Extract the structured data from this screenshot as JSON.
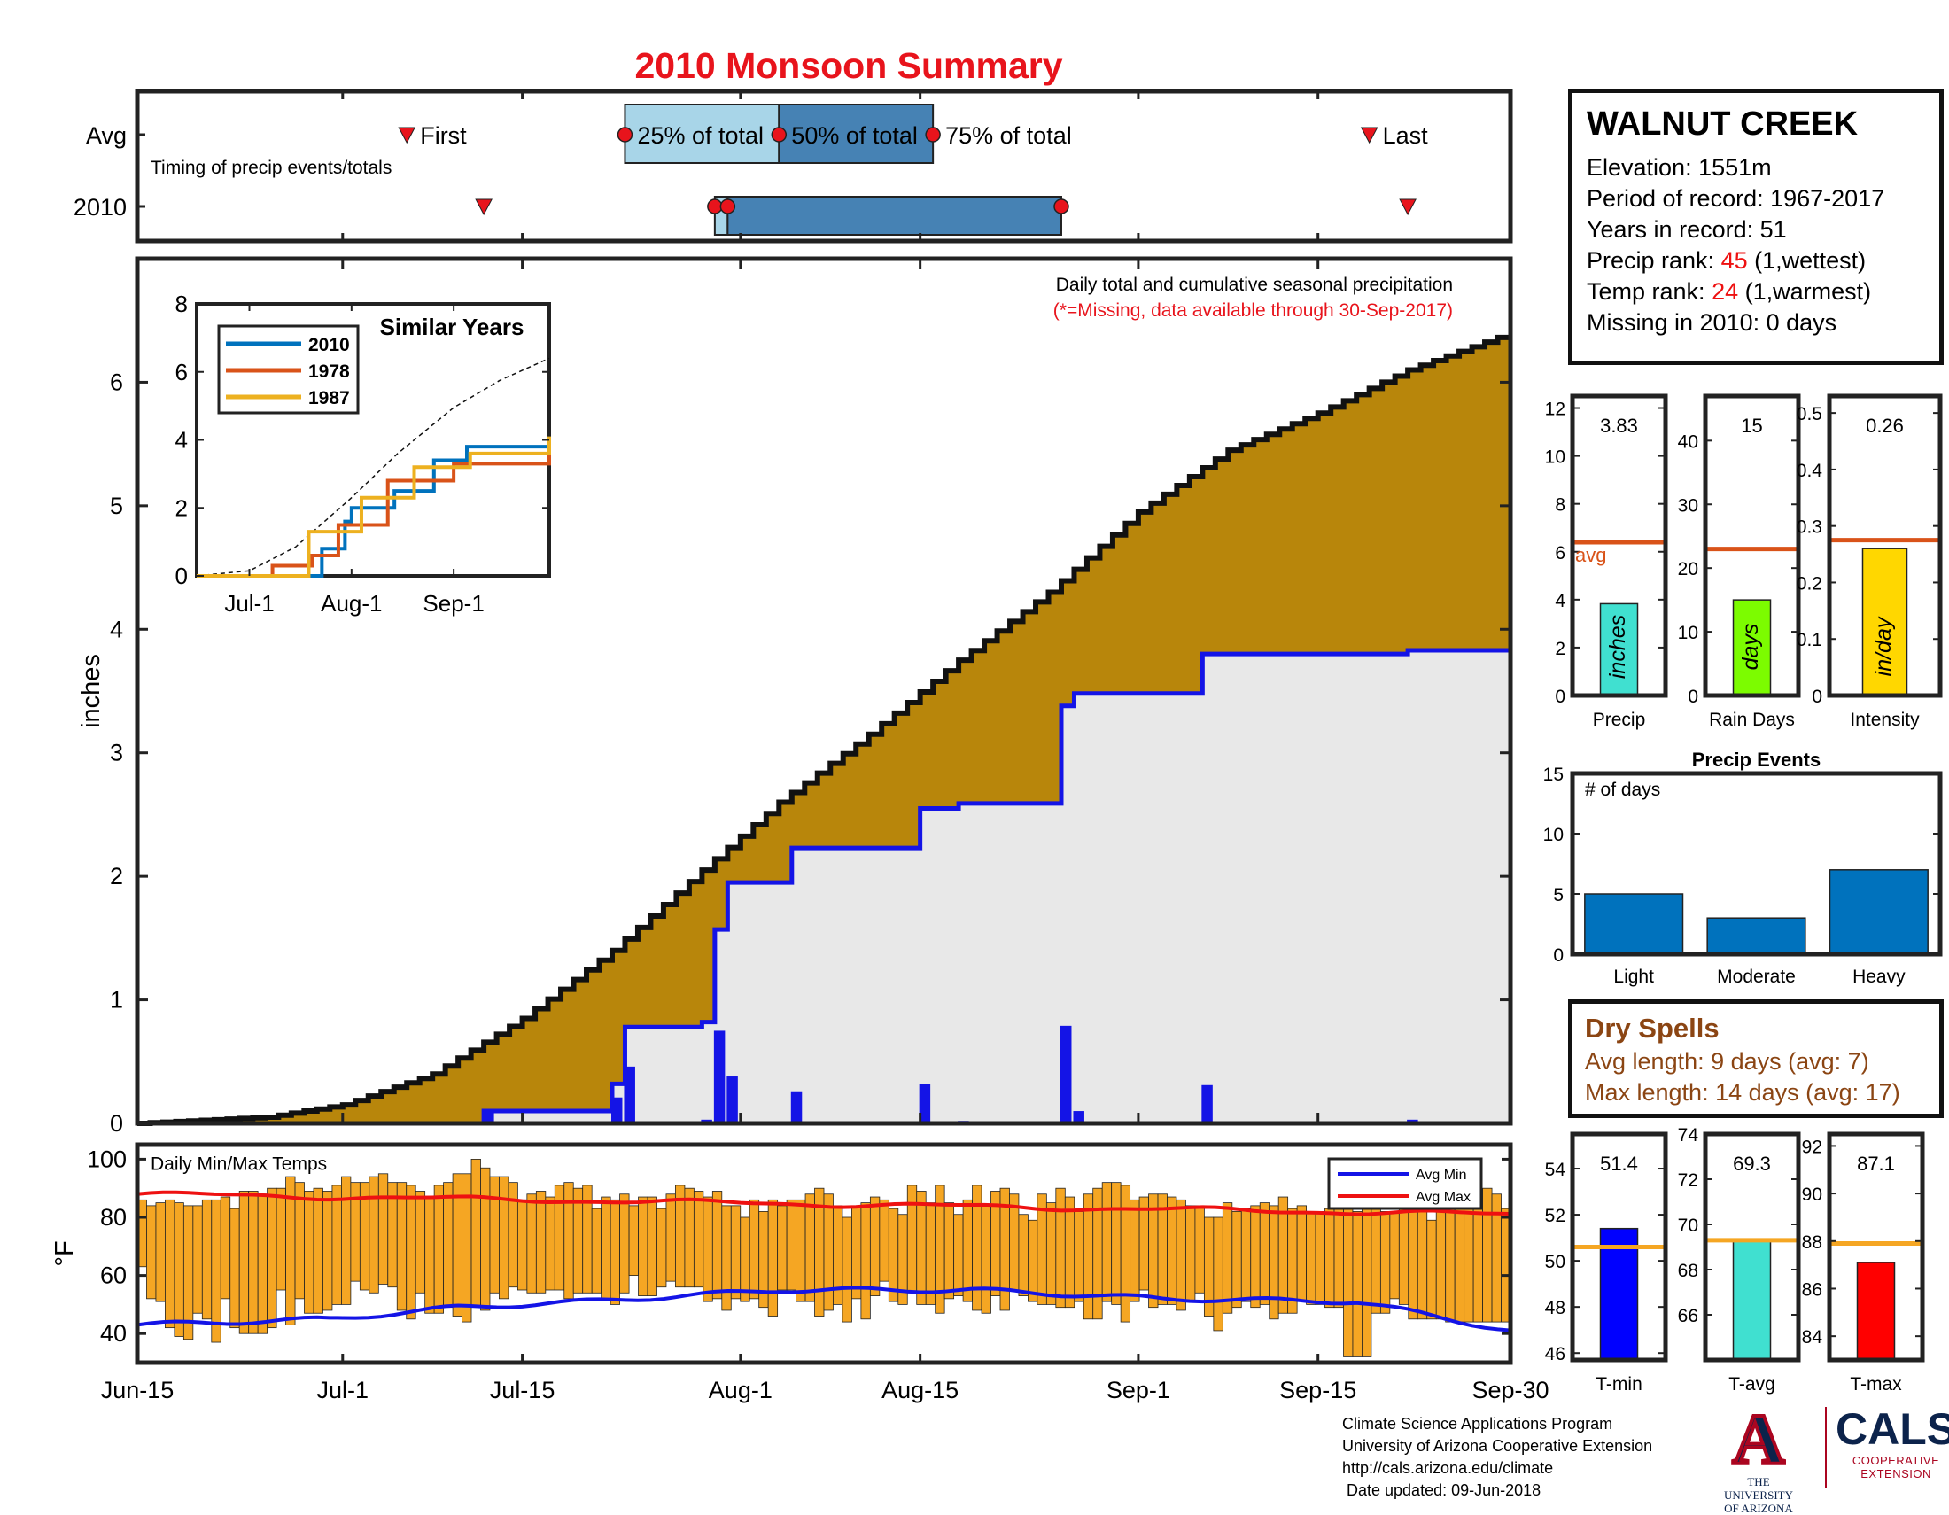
{
  "title": "2010 Monsoon Summary",
  "station": {
    "name": "WALNUT CREEK",
    "elevation_label": "Elevation: 1551m",
    "period_label": "Period of record: 1967-2017",
    "years_label": "Years in record: 51",
    "precip_rank_prefix": "Precip rank: ",
    "precip_rank_value": "45",
    "precip_rank_suffix": " (1,wettest)",
    "temp_rank_prefix": "Temp rank: ",
    "temp_rank_value": "24",
    "temp_rank_suffix": " (1,warmest)",
    "missing_label": "Missing in 2010: 0 days"
  },
  "dry_spells": {
    "title": "Dry Spells",
    "avg_label": "Avg length: 9 days (avg: 7)",
    "max_label": "Max length: 14 days (avg: 17)"
  },
  "footer": {
    "line1": "Climate Science Applications Program",
    "line2": "University of Arizona Cooperative Extension",
    "line3": "http://cals.arizona.edu/climate",
    "line4": " Date updated: 09-Jun-2018"
  },
  "logos": {
    "ua_letter": "A",
    "ua_text_1": "THE UNIVERSITY",
    "ua_text_2": "OF ARIZONA",
    "cals_word": "CALS",
    "cals_sub_1": "COOPERATIVE",
    "cals_sub_2": "EXTENSION"
  },
  "colors": {
    "title": "#e8141c",
    "avg_area": "#b8860b",
    "year_area": "#e8e8e8",
    "year_line": "#1414e6",
    "daily_bar": "#1414e6",
    "temp_bar": "#f5a623",
    "avg_max": "#ee1111",
    "avg_min": "#1414e6",
    "timing_light": "#a8d5e8",
    "timing_dark": "#4682b4",
    "series_2010": "#0072bd",
    "series_1978": "#d95319",
    "series_1987": "#edb120",
    "avg_line": "#d95319",
    "temp_avg_line": "#f5a623",
    "precip_bar": "#40e0d0",
    "raindays_bar": "#7cfc00",
    "intensity_bar": "#ffd700",
    "events_bar": "#0072bd",
    "tmin_bar": "#0000ff",
    "tavg_bar": "#40e0d0",
    "tmax_bar": "#ff0000"
  },
  "chart_data": [
    {
      "id": "timing",
      "type": "timeline",
      "title": "Timing of precip events/totals",
      "rows": [
        "Avg",
        "2010"
      ],
      "avg": {
        "first": "Jul-6",
        "q25": "Jul-23",
        "q50": "Aug-4",
        "q75": "Aug-16",
        "last": "Sep-19"
      },
      "y2010": {
        "first": "Jul-12",
        "q25": "Jul-30",
        "q50": "Jul-31",
        "q75": "Aug-26",
        "last": "Sep-22"
      },
      "labels": {
        "first": "First",
        "q25": "25% of total",
        "q50": "50% of total",
        "q75": "75% of total",
        "last": "Last"
      }
    },
    {
      "id": "cumulative",
      "type": "area",
      "title": "Daily total and cumulative seasonal precipitation",
      "subtitle": "(*=Missing, data available through 30-Sep-2017)",
      "ylabel": "inches",
      "ylim": [
        0,
        7
      ],
      "yticks": [
        0,
        1,
        2,
        3,
        4,
        5,
        6
      ],
      "xticks": [
        "Jun-15",
        "Jul-1",
        "Jul-15",
        "Aug-1",
        "Aug-15",
        "Sep-1",
        "Sep-15",
        "Sep-30"
      ],
      "avg_cumulative_points": [
        [
          "Jun-15",
          0.0
        ],
        [
          "Jun-25",
          0.05
        ],
        [
          "Jul-1",
          0.15
        ],
        [
          "Jul-8",
          0.4
        ],
        [
          "Jul-15",
          0.85
        ],
        [
          "Jul-22",
          1.4
        ],
        [
          "Jul-29",
          2.05
        ],
        [
          "Aug-4",
          2.6
        ],
        [
          "Aug-11",
          3.15
        ],
        [
          "Aug-18",
          3.75
        ],
        [
          "Aug-25",
          4.3
        ],
        [
          "Sep-1",
          4.95
        ],
        [
          "Sep-8",
          5.45
        ],
        [
          "Sep-15",
          5.75
        ],
        [
          "Sep-22",
          6.1
        ],
        [
          "Sep-30",
          6.4
        ]
      ],
      "year_cumulative_steps": [
        [
          "Jun-15",
          0.0
        ],
        [
          "Jul-12",
          0.1
        ],
        [
          "Jul-22",
          0.32
        ],
        [
          "Jul-23",
          0.78
        ],
        [
          "Jul-29",
          0.82
        ],
        [
          "Jul-30",
          1.57
        ],
        [
          "Jul-31",
          1.95
        ],
        [
          "Aug-5",
          2.23
        ],
        [
          "Aug-15",
          2.55
        ],
        [
          "Aug-18",
          2.59
        ],
        [
          "Aug-26",
          3.38
        ],
        [
          "Aug-27",
          3.48
        ],
        [
          "Sep-6",
          3.8
        ],
        [
          "Sep-22",
          3.83
        ],
        [
          "Sep-30",
          3.83
        ]
      ],
      "daily_totals": [
        [
          "Jul-12",
          0.1
        ],
        [
          "Jul-22",
          0.21
        ],
        [
          "Jul-23",
          0.46
        ],
        [
          "Jul-29",
          0.03
        ],
        [
          "Jul-30",
          0.75
        ],
        [
          "Jul-31",
          0.38
        ],
        [
          "Aug-5",
          0.26
        ],
        [
          "Aug-15",
          0.32
        ],
        [
          "Aug-18",
          0.02
        ],
        [
          "Aug-26",
          0.79
        ],
        [
          "Aug-27",
          0.1
        ],
        [
          "Sep-6",
          0.31
        ],
        [
          "Sep-22",
          0.03
        ]
      ]
    },
    {
      "id": "similar_years",
      "type": "line",
      "title": "Similar Years",
      "ylim": [
        0,
        8
      ],
      "yticks": [
        0,
        2,
        4,
        6,
        8
      ],
      "xticks": [
        "Jul-1",
        "Aug-1",
        "Sep-1"
      ],
      "series": [
        {
          "name": "2010",
          "points": [
            [
              "Jun-15",
              0
            ],
            [
              "Jul-22",
              0
            ],
            [
              "Jul-23",
              0.8
            ],
            [
              "Jul-30",
              1.6
            ],
            [
              "Aug-1",
              2.0
            ],
            [
              "Aug-14",
              2.5
            ],
            [
              "Aug-26",
              3.4
            ],
            [
              "Sep-5",
              3.8
            ],
            [
              "Sep-30",
              3.83
            ]
          ]
        },
        {
          "name": "1978",
          "points": [
            [
              "Jun-15",
              0
            ],
            [
              "Jul-7",
              0
            ],
            [
              "Jul-8",
              0.3
            ],
            [
              "Jul-20",
              0.6
            ],
            [
              "Jul-28",
              1.5
            ],
            [
              "Aug-12",
              2.8
            ],
            [
              "Sep-1",
              3.3
            ],
            [
              "Sep-30",
              3.8
            ]
          ]
        },
        {
          "name": "1987",
          "points": [
            [
              "Jun-15",
              0
            ],
            [
              "Jul-18",
              0
            ],
            [
              "Jul-19",
              1.3
            ],
            [
              "Aug-4",
              2.3
            ],
            [
              "Aug-20",
              3.2
            ],
            [
              "Sep-6",
              3.6
            ],
            [
              "Sep-30",
              4.1
            ]
          ]
        }
      ],
      "avg_points": [
        [
          "Jun-15",
          0
        ],
        [
          "Jul-1",
          0.15
        ],
        [
          "Jul-15",
          0.85
        ],
        [
          "Aug-1",
          2.3
        ],
        [
          "Aug-15",
          3.6
        ],
        [
          "Sep-1",
          4.95
        ],
        [
          "Sep-15",
          5.75
        ],
        [
          "Sep-30",
          6.4
        ]
      ]
    },
    {
      "id": "precip",
      "type": "bar",
      "xlabel": "Precip",
      "value": 3.83,
      "value_label": "3.83",
      "avg": 6.4,
      "avg_label": "avg",
      "bar_label": "inches",
      "ylim": [
        0,
        12.5
      ],
      "yticks": [
        0,
        2,
        4,
        6,
        8,
        10,
        12
      ]
    },
    {
      "id": "rain_days",
      "type": "bar",
      "xlabel": "Rain Days",
      "value": 15,
      "value_label": "15",
      "avg": 23,
      "bar_label": "days",
      "ylim": [
        0,
        47
      ],
      "yticks": [
        0,
        10,
        20,
        30,
        40
      ]
    },
    {
      "id": "intensity",
      "type": "bar",
      "xlabel": "Intensity",
      "value": 0.26,
      "value_label": "0.26",
      "avg": 0.275,
      "bar_label": "in/day",
      "ylim": [
        0,
        0.53
      ],
      "yticks": [
        0,
        0.1,
        0.2,
        0.3,
        0.4,
        0.5
      ]
    },
    {
      "id": "precip_events",
      "type": "bar",
      "title": "Precip Events",
      "annotation": "# of days",
      "categories": [
        "Light",
        "Moderate",
        "Heavy"
      ],
      "values": [
        5,
        3,
        7
      ],
      "ylim": [
        0,
        15
      ],
      "yticks": [
        0,
        5,
        10,
        15
      ]
    },
    {
      "id": "daily_temps",
      "type": "bar",
      "title": "Daily Min/Max Temps",
      "ylabel": "°F",
      "ylim": [
        30,
        105
      ],
      "yticks": [
        40,
        60,
        80,
        100
      ],
      "legend": [
        "Avg Min",
        "Avg Max"
      ],
      "daily_min": [
        63,
        52,
        51,
        42,
        39,
        38,
        47,
        45,
        37,
        52,
        42,
        40,
        40,
        40,
        42,
        55,
        43,
        52,
        47,
        47,
        48,
        50,
        50,
        58,
        55,
        54,
        57,
        56,
        48,
        45,
        54,
        47,
        47,
        49,
        46,
        44,
        49,
        48,
        54,
        52,
        56,
        55,
        54,
        54,
        55,
        55,
        52,
        54,
        54,
        54,
        52,
        50,
        54,
        60,
        53,
        53,
        56,
        58,
        56,
        56,
        56,
        51,
        52,
        48,
        52,
        51,
        52,
        49,
        46,
        55,
        55,
        51,
        51,
        46,
        48,
        50,
        44,
        52,
        45,
        53,
        58,
        51,
        50,
        54,
        50,
        50,
        47,
        52,
        53,
        51,
        48,
        47,
        53,
        48,
        55,
        53,
        51,
        50,
        50,
        49,
        49,
        51,
        45,
        45,
        51,
        50,
        44,
        51,
        55,
        49,
        50,
        50,
        48,
        51,
        54,
        46,
        41,
        47,
        49,
        51,
        49,
        50,
        45,
        47,
        47,
        51,
        50,
        50,
        49,
        49,
        32,
        32,
        32,
        47,
        47,
        52,
        50,
        45,
        45,
        45,
        45,
        44,
        44,
        44,
        44,
        44,
        44,
        44
      ],
      "daily_max": [
        86,
        84,
        85,
        86,
        85,
        84,
        84,
        86,
        86,
        87,
        83,
        89,
        89,
        88,
        90,
        90,
        94,
        92,
        89,
        90,
        89,
        91,
        94,
        92,
        92,
        94,
        95,
        92,
        92,
        91,
        89,
        87,
        91,
        92,
        95,
        95,
        100,
        97,
        94,
        94,
        92,
        86,
        88,
        89,
        87,
        91,
        92,
        90,
        91,
        83,
        87,
        86,
        88,
        84,
        87,
        87,
        83,
        88,
        91,
        90,
        89,
        87,
        89,
        84,
        84,
        80,
        86,
        82,
        86,
        84,
        86,
        86,
        88,
        90,
        88,
        84,
        80,
        84,
        85,
        87,
        86,
        83,
        81,
        91,
        89,
        85,
        91,
        85,
        81,
        86,
        91,
        84,
        89,
        90,
        88,
        81,
        79,
        88,
        85,
        90,
        87,
        82,
        88,
        90,
        92,
        92,
        91,
        86,
        87,
        88,
        88,
        87,
        86,
        84,
        84,
        80,
        80,
        85,
        82,
        83,
        84,
        85,
        84,
        87,
        83,
        84,
        82,
        82,
        83,
        84,
        85,
        82,
        83,
        84,
        82,
        82,
        85,
        82,
        82,
        79,
        88,
        87,
        83,
        84,
        86,
        90,
        88,
        83
      ],
      "avg_min_start": 43,
      "avg_min_end": 40,
      "avg_max_start": 88,
      "avg_max_end": 81
    },
    {
      "id": "tmin",
      "type": "bar",
      "xlabel": "T-min",
      "value": 51.4,
      "value_label": "51.4",
      "avg": 50.6,
      "ylim": [
        45.7,
        55.5
      ],
      "yticks": [
        46,
        48,
        50,
        52,
        54
      ]
    },
    {
      "id": "tavg",
      "type": "bar",
      "xlabel": "T-avg",
      "value": 69.3,
      "value_label": "69.3",
      "avg": 69.3,
      "ylim": [
        64,
        74
      ],
      "yticks": [
        66,
        68,
        70,
        72,
        74
      ]
    },
    {
      "id": "tmax",
      "type": "bar",
      "xlabel": "T-max",
      "value": 87.1,
      "value_label": "87.1",
      "avg": 87.9,
      "ylim": [
        83,
        92.5
      ],
      "yticks": [
        84,
        86,
        88,
        90,
        92
      ]
    }
  ]
}
